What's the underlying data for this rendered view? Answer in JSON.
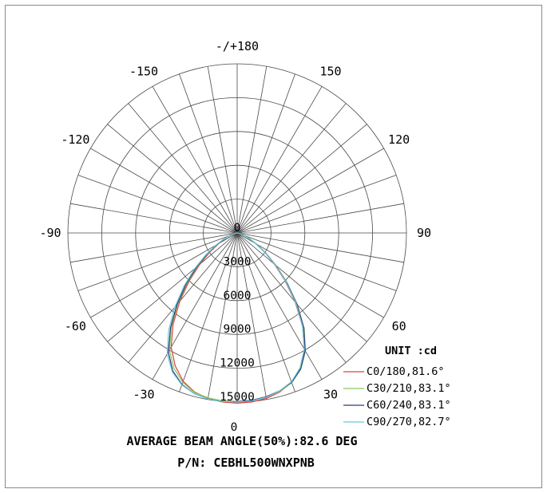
{
  "chart_data": {
    "type": "polar",
    "unit_label": "UNIT :cd",
    "radial_labels": [
      "0",
      "3000",
      "6000",
      "9000",
      "12000",
      "15000"
    ],
    "radial_values": [
      0,
      3000,
      6000,
      9000,
      12000,
      15000
    ],
    "bottom_label": "0",
    "angle_labels": [
      {
        "angle": 180,
        "text": "-/+180"
      },
      {
        "angle": -150,
        "text": "-150"
      },
      {
        "angle": 150,
        "text": "150"
      },
      {
        "angle": -120,
        "text": "-120"
      },
      {
        "angle": 120,
        "text": "120"
      },
      {
        "angle": -90,
        "text": "-90"
      },
      {
        "angle": 90,
        "text": "90"
      },
      {
        "angle": -60,
        "text": "-60"
      },
      {
        "angle": 60,
        "text": "60"
      },
      {
        "angle": -30,
        "text": "-30"
      },
      {
        "angle": 30,
        "text": "30"
      }
    ],
    "series": [
      {
        "name": "C0/180,81.6°",
        "color": "#e0403a",
        "angles": [
          -90,
          -85,
          -80,
          -75,
          -70,
          -65,
          -60,
          -55,
          -50,
          -45,
          -40,
          -35,
          -30,
          -25,
          -20,
          -15,
          -10,
          -5,
          0,
          5,
          10,
          15,
          20,
          25,
          30,
          35,
          40,
          45,
          50,
          55,
          60,
          65,
          70,
          75,
          80,
          85,
          90
        ],
        "values": [
          0,
          30,
          120,
          320,
          650,
          1150,
          1900,
          2950,
          4300,
          6000,
          7900,
          9900,
          11700,
          13000,
          14000,
          14600,
          14900,
          15050,
          15100,
          15050,
          14900,
          14600,
          14100,
          13200,
          11900,
          10100,
          8000,
          6000,
          4300,
          2950,
          1900,
          1150,
          650,
          320,
          120,
          30,
          0
        ]
      },
      {
        "name": "C30/210,83.1°",
        "color": "#8cc85a",
        "angles": [
          -90,
          -85,
          -80,
          -75,
          -70,
          -65,
          -60,
          -55,
          -50,
          -45,
          -40,
          -35,
          -30,
          -25,
          -20,
          -15,
          -10,
          -5,
          0,
          5,
          10,
          15,
          20,
          25,
          30,
          35,
          40,
          45,
          50,
          55,
          60,
          65,
          70,
          75,
          80,
          85,
          90
        ],
        "values": [
          0,
          30,
          130,
          340,
          700,
          1250,
          2050,
          3150,
          4550,
          6250,
          8150,
          10150,
          12000,
          13250,
          14100,
          14650,
          14850,
          14950,
          14950,
          14900,
          14800,
          14550,
          14150,
          13350,
          12100,
          10350,
          8300,
          6250,
          4500,
          3100,
          2000,
          1200,
          680,
          330,
          120,
          30,
          0
        ]
      },
      {
        "name": "C60/240,83.1°",
        "color": "#2a3a7a",
        "angles": [
          -90,
          -85,
          -80,
          -75,
          -70,
          -65,
          -60,
          -55,
          -50,
          -45,
          -40,
          -35,
          -30,
          -25,
          -20,
          -15,
          -10,
          -5,
          0,
          5,
          10,
          15,
          20,
          25,
          30,
          35,
          40,
          45,
          50,
          55,
          60,
          65,
          70,
          75,
          80,
          85,
          90
        ],
        "values": [
          0,
          35,
          140,
          360,
          730,
          1300,
          2100,
          3250,
          4700,
          6400,
          8300,
          10300,
          12200,
          13500,
          14300,
          14750,
          14950,
          15000,
          14950,
          14900,
          14750,
          14500,
          14100,
          13300,
          12050,
          10300,
          8250,
          6200,
          4450,
          3050,
          1950,
          1180,
          660,
          320,
          120,
          30,
          0
        ]
      },
      {
        "name": "C90/270,82.7°",
        "color": "#66c8dc",
        "angles": [
          -90,
          -85,
          -80,
          -75,
          -70,
          -65,
          -60,
          -55,
          -50,
          -45,
          -40,
          -35,
          -30,
          -25,
          -20,
          -15,
          -10,
          -5,
          0,
          5,
          10,
          15,
          20,
          25,
          30,
          35,
          40,
          45,
          50,
          55,
          60,
          65,
          70,
          75,
          80,
          85,
          90
        ],
        "values": [
          0,
          40,
          150,
          380,
          760,
          1350,
          2200,
          3400,
          4900,
          6650,
          8600,
          10600,
          12400,
          13600,
          14350,
          14750,
          14950,
          15000,
          15000,
          14950,
          14800,
          14500,
          14050,
          13200,
          11900,
          10100,
          8100,
          6100,
          4400,
          3000,
          1900,
          1150,
          640,
          310,
          115,
          30,
          0
        ]
      }
    ],
    "grid": true,
    "legend_position": "bottom-right"
  },
  "footer": {
    "beam_angle": "AVERAGE BEAM ANGLE(50%):82.6 DEG",
    "part_number": "P/N: CEBHL500WNXPNB"
  }
}
